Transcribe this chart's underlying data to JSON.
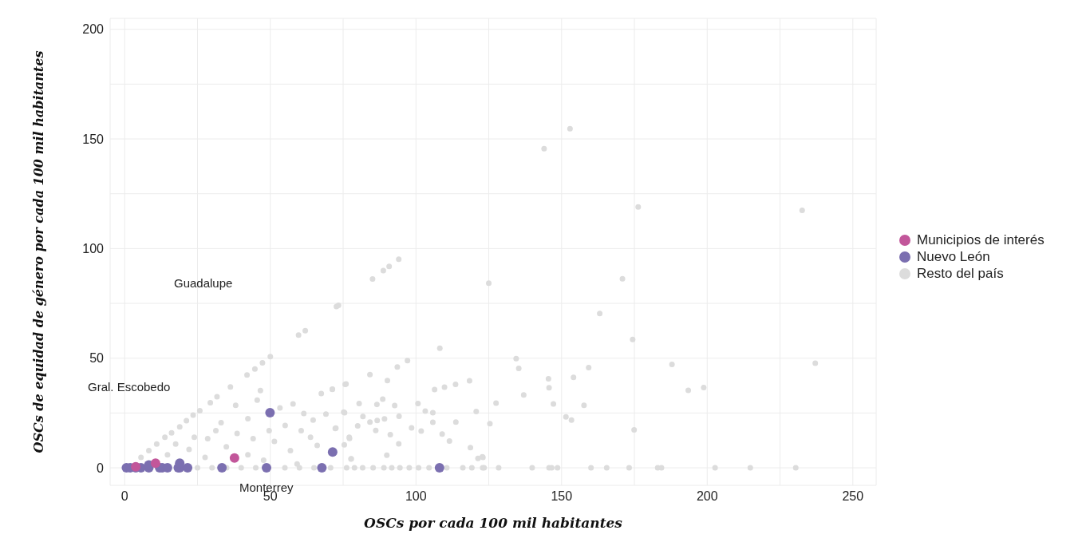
{
  "chart_data": {
    "type": "scatter",
    "xlabel": "OSCs por cada 100 mil habitantes",
    "ylabel": "OSCs de equidad de género por cada 100 mil habitantes",
    "xlim": [
      -5,
      258
    ],
    "ylim": [
      -8,
      205
    ],
    "xticks": [
      0,
      {
        "value": 25,
        "label": null
      },
      50,
      {
        "value": 75,
        "label": null
      },
      100,
      {
        "value": 125,
        "label": null
      },
      150,
      {
        "value": 175,
        "label": null
      },
      200,
      {
        "value": 225,
        "label": null
      },
      250
    ],
    "yticks": [
      0,
      {
        "value": 25,
        "label": null
      },
      50,
      {
        "value": 75,
        "label": null
      },
      100,
      {
        "value": 125,
        "label": null
      },
      150,
      {
        "value": 175,
        "label": null
      },
      200
    ],
    "grid": true,
    "legend": "right",
    "marker": "circle",
    "annotations": [
      "Guadalupe",
      "Gral. Escobedo",
      "Monterrey"
    ],
    "series": [
      {
        "name": "Municipios de interés",
        "color": "#c2569a",
        "x": [
          37.7,
          3.8,
          10.6
        ],
        "values": [
          4.5,
          0.5,
          2.1
        ]
      },
      {
        "name": "Nuevo León",
        "color": "#7b6fb0",
        "x": [
          49.9,
          71.4,
          0.6,
          1.9,
          3.8,
          5.6,
          8.3,
          12,
          12.9,
          14.7,
          18.4,
          18.9,
          21.6,
          33.4,
          48.7,
          67.7,
          108.1,
          8.3,
          18.9
        ],
        "values": [
          25.1,
          7.2,
          0,
          0,
          0,
          0,
          0,
          0,
          0,
          0,
          0,
          0,
          0,
          0,
          0,
          0,
          0,
          1.3,
          2.1
        ]
      },
      {
        "name": "Resto del país",
        "color": "#dcdcdc",
        "x": [
          152.9,
          144,
          176.3,
          232.6,
          125,
          170.9,
          163.1,
          174.4,
          134.4,
          135.3,
          187.9,
          237.1,
          145.5,
          145.7,
          154.1,
          159.3,
          137,
          193.5,
          198.8,
          127.5,
          147.2,
          157.7,
          125.4,
          151.5,
          153.4,
          174.9,
          123,
          123.4,
          128.4,
          139.9,
          145.7,
          146.6,
          148.6,
          160.1,
          165.5,
          173.2,
          183,
          184.3,
          202.7,
          214.8,
          230.4,
          94.1,
          90.8,
          88.8,
          85.1,
          72.7,
          73.4,
          108.2,
          97.1,
          93.6,
          84.2,
          90.2,
          75.7,
          71.3,
          106.4,
          109.8,
          113.6,
          118.4,
          80.5,
          86.6,
          88.6,
          92.7,
          100.7,
          103.2,
          105.8,
          120.7,
          69.1,
          75.5,
          81.8,
          84.2,
          86.7,
          89.2,
          94.2,
          105.8,
          113.7,
          80,
          86.2,
          72.3,
          98.5,
          101.8,
          91.2,
          109,
          77.2,
          111.5,
          94.1,
          75.4,
          118.7,
          90,
          77.7,
          121.3,
          122.8,
          70.7,
          76.2,
          78.9,
          81.7,
          85.3,
          89,
          91.7,
          94.5,
          97.7,
          100.9,
          104.5,
          110.6,
          116.1,
          119.2,
          122.9,
          59.7,
          62,
          50,
          47.3,
          44.7,
          42,
          76,
          36.3,
          46.6,
          31.7,
          29.4,
          67.5,
          71.3,
          45.5,
          38.1,
          25.8,
          23.5,
          21.2,
          18.9,
          16.1,
          13.8,
          11,
          8.3,
          5.6,
          57.8,
          53.3,
          42.3,
          31.3,
          23.9,
          17.5,
          33.1,
          38.6,
          44.1,
          49.6,
          55.1,
          51.4,
          60.6,
          56.9,
          61.5,
          64.7,
          63.8,
          66.1,
          72.5,
          75.2,
          77.1,
          77.8,
          59.2,
          28.5,
          22.1,
          34.9,
          42.3,
          47.7,
          14.7,
          27.6,
          25,
          30,
          35,
          40,
          45,
          55,
          60,
          65
        ],
        "values": [
          154.7,
          145.6,
          119,
          117.4,
          84.2,
          86.2,
          70.4,
          58.5,
          49.8,
          45.3,
          47.2,
          47.7,
          40.6,
          36.5,
          41.2,
          45.7,
          33.2,
          35.3,
          36.6,
          29.5,
          29.1,
          28.5,
          20.1,
          23.2,
          21.8,
          17.3,
          4.7,
          0,
          0,
          0,
          0,
          0,
          0,
          0,
          0,
          0,
          0,
          0,
          0,
          0,
          0,
          95.1,
          91.9,
          89.9,
          86.1,
          73.6,
          74.1,
          54.5,
          48.9,
          46,
          42.5,
          39.8,
          38.1,
          35.9,
          35.7,
          36.8,
          38.1,
          39.7,
          29.3,
          28.9,
          31.3,
          28.4,
          29.3,
          25.9,
          25.1,
          25.7,
          24.5,
          25.1,
          23.4,
          20.9,
          21.6,
          22.3,
          23.5,
          20.8,
          20.9,
          19.1,
          17,
          17.9,
          18.2,
          16.8,
          15.1,
          15.4,
          13.4,
          12.2,
          10.9,
          10.5,
          9.2,
          5.7,
          4,
          4.3,
          5,
          0,
          0,
          0,
          0,
          0,
          0,
          0,
          0,
          0,
          0,
          0,
          0,
          0,
          0,
          0,
          60.5,
          62.5,
          50.7,
          47.9,
          45.1,
          42.3,
          38.2,
          36.9,
          35.2,
          32.4,
          29.7,
          33.9,
          35.8,
          30.9,
          28.5,
          26,
          24,
          21.5,
          18.7,
          15.9,
          13.9,
          10.8,
          7.8,
          4.7,
          29.1,
          27.3,
          22.4,
          16.9,
          13.9,
          10.8,
          20.6,
          15.7,
          13.3,
          16.9,
          19.3,
          12,
          16.9,
          7.8,
          24.8,
          21.8,
          13.9,
          10.2,
          18.1,
          25.4,
          13.9,
          4.1,
          1.7,
          13.3,
          8.4,
          9.6,
          5.9,
          3.5,
          5.9,
          4.7,
          0,
          0,
          0,
          0,
          0,
          0,
          0,
          0
        ]
      }
    ]
  }
}
